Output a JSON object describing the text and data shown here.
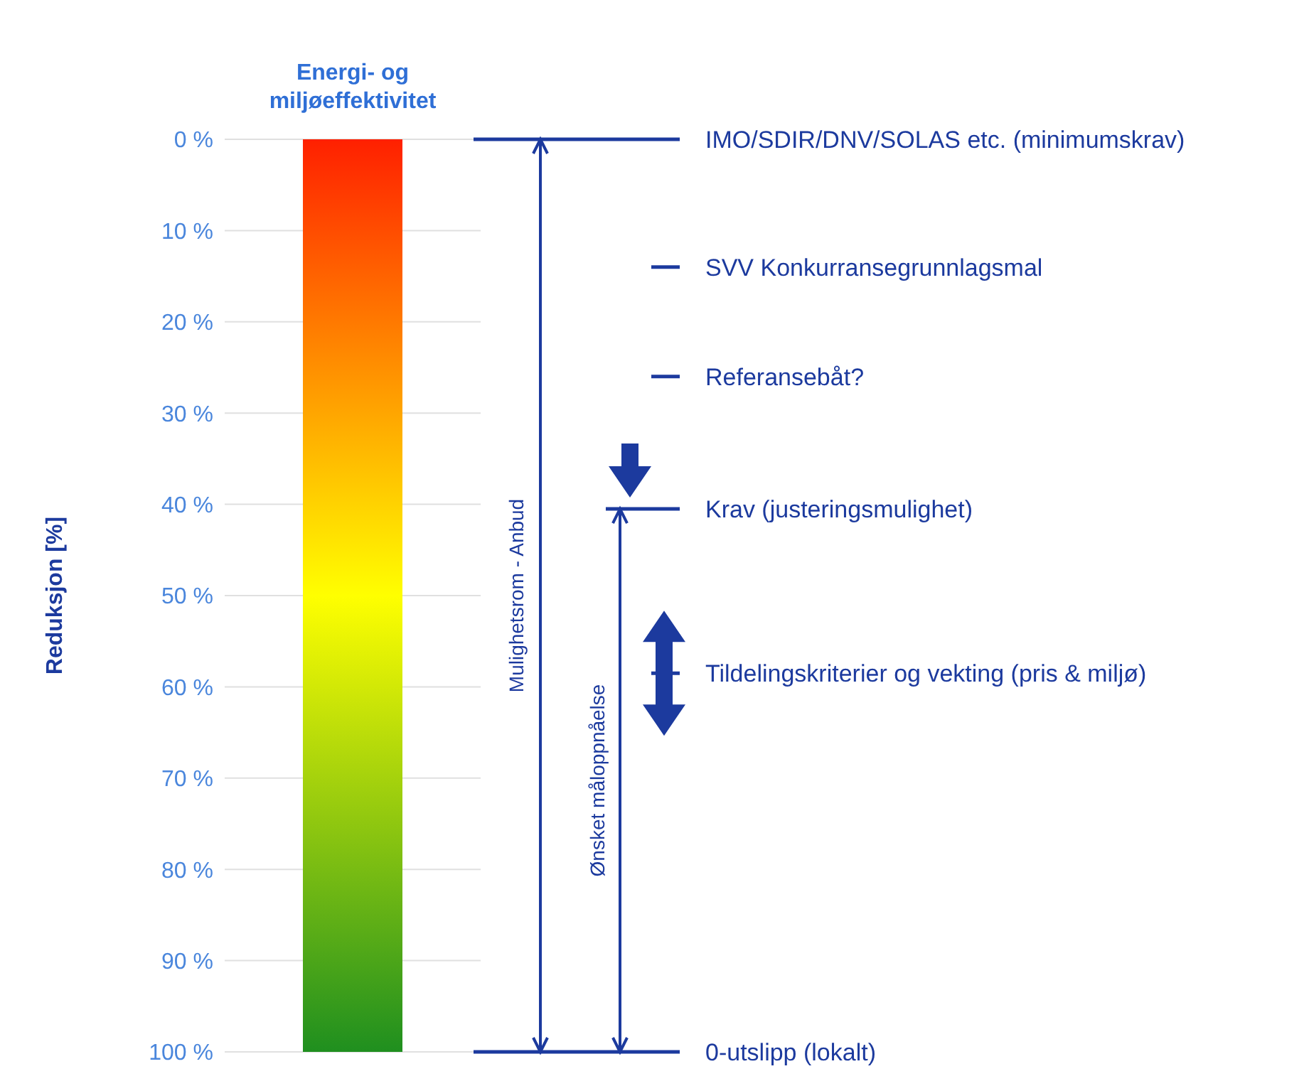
{
  "chart_data": {
    "type": "bar",
    "categories": [
      "Energi- og miljøeffektivitet"
    ],
    "values": [
      100
    ],
    "color": "#ffff00",
    "ylabel": "Reduksjon [%]",
    "ylim": [
      100,
      0
    ],
    "yticks": [
      {
        "value": 0,
        "label": "0 %"
      },
      {
        "value": 10,
        "label": "10 %"
      },
      {
        "value": 20,
        "label": "20 %"
      },
      {
        "value": 30,
        "label": "30 %"
      },
      {
        "value": 40,
        "label": "40 %"
      },
      {
        "value": 50,
        "label": "50 %"
      },
      {
        "value": 60,
        "label": "60 %"
      },
      {
        "value": 70,
        "label": "70 %"
      },
      {
        "value": 80,
        "label": "80 %"
      },
      {
        "value": 90,
        "label": "90 %"
      },
      {
        "value": 100,
        "label": "100 %"
      }
    ],
    "grid": "y",
    "ref_lines": [
      {
        "axis": "y",
        "value": 0,
        "label": "IMO/SDIR/DNV/SOLAS etc. (minimumskrav)",
        "color": "#1c3a9e"
      },
      {
        "axis": "y",
        "value": 14,
        "label": "SVV Konkurransegrunnlagsmal",
        "color": "#1c3a9e"
      },
      {
        "axis": "y",
        "value": 26,
        "label": "Referansebåt?",
        "color": "#1c3a9e"
      },
      {
        "axis": "y",
        "value": 40.5,
        "label": "Krav (justeringsmulighet)",
        "color": "#1c3a9e"
      },
      {
        "axis": "y",
        "value": 58.5,
        "label": "Tildelingskriterier og vekting (pris & miljø)",
        "color": "#1c3a9e"
      },
      {
        "axis": "y",
        "value": 100,
        "label": "0-utslipp (lokalt)",
        "color": "#1c3a9e"
      }
    ],
    "annotations": [
      "Mulighetsrom - Anbud",
      "Ønsket måloppnåelse"
    ]
  }
}
